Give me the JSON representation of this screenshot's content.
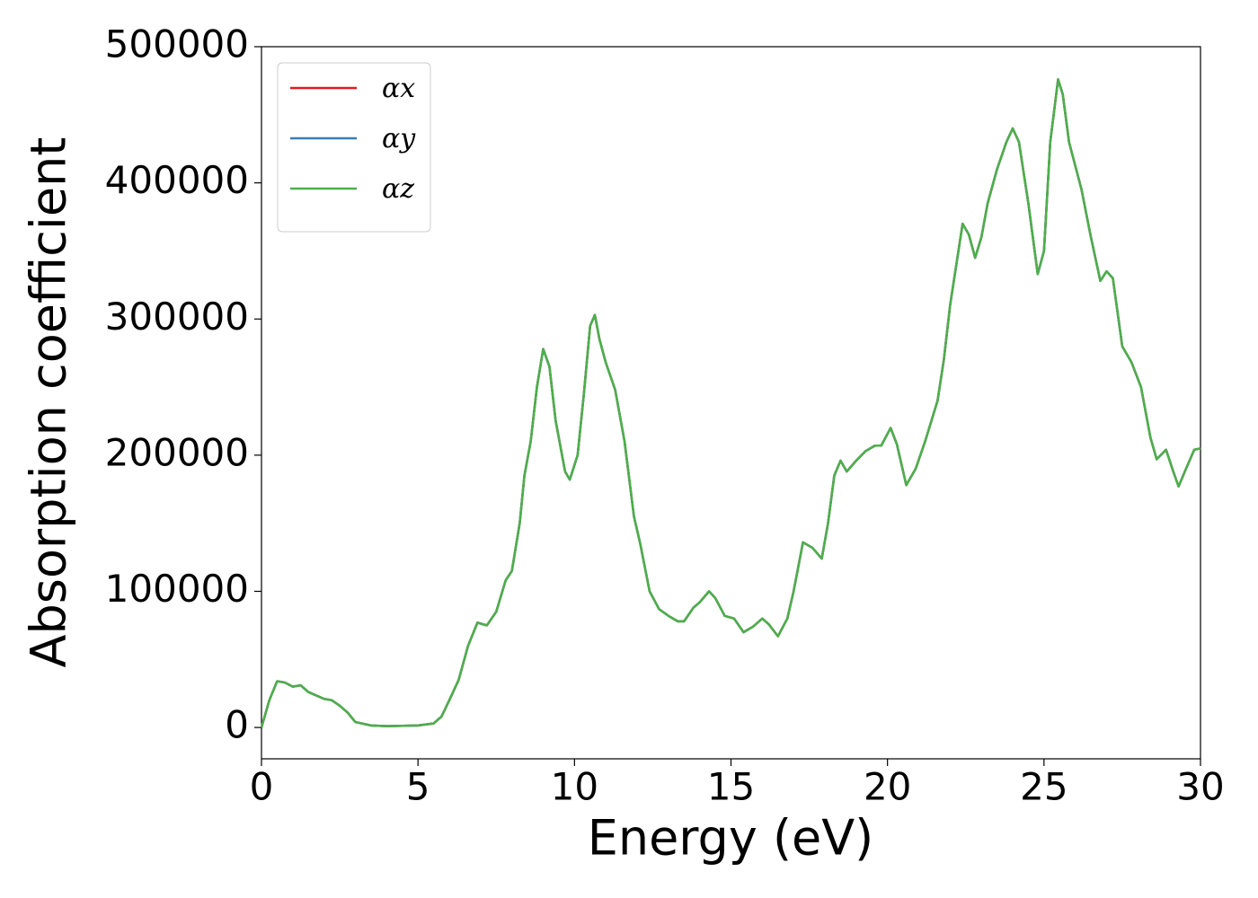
{
  "chart_data": {
    "type": "line",
    "x_label": "Energy (eV)",
    "y_label": "Absorption coefficient",
    "x": [
      0,
      0.25,
      0.5,
      0.75,
      1.0,
      1.25,
      1.5,
      2.0,
      2.25,
      2.5,
      2.75,
      3.0,
      3.5,
      4,
      5,
      5.5,
      5.75,
      6.0,
      6.3,
      6.6,
      6.9,
      7.2,
      7.5,
      7.8,
      8.0,
      8.25,
      8.4,
      8.6,
      8.8,
      9.0,
      9.2,
      9.4,
      9.7,
      9.85,
      10.1,
      10.3,
      10.5,
      10.65,
      10.8,
      11.0,
      11.3,
      11.6,
      11.9,
      12.1,
      12.4,
      12.7,
      13.0,
      13.3,
      13.5,
      13.8,
      14.0,
      14.3,
      14.5,
      14.8,
      15.1,
      15.4,
      15.7,
      16.0,
      16.2,
      16.5,
      16.8,
      17.0,
      17.3,
      17.6,
      17.9,
      18.1,
      18.3,
      18.5,
      18.7,
      19.0,
      19.3,
      19.6,
      19.8,
      20.1,
      20.3,
      20.6,
      20.9,
      21.2,
      21.6,
      21.8,
      22.0,
      22.2,
      22.4,
      22.6,
      22.8,
      23.0,
      23.2,
      23.5,
      23.8,
      24.0,
      24.2,
      24.5,
      24.8,
      25.0,
      25.2,
      25.45,
      25.6,
      25.8,
      26.2,
      26.5,
      26.8,
      27.0,
      27.2,
      27.5,
      27.8,
      28.1,
      28.4,
      28.6,
      28.9,
      29.1,
      29.3,
      29.5,
      29.8,
      30.0
    ],
    "series": [
      {
        "name": "αx",
        "color": "#e41a1c",
        "values": [
          0,
          20000,
          34000,
          33000,
          30000,
          31000,
          26000,
          21000,
          20000,
          16000,
          11000,
          4000,
          1500,
          1000,
          1500,
          3000,
          8000,
          20000,
          35000,
          60000,
          77000,
          75000,
          85000,
          108000,
          115000,
          150000,
          185000,
          210000,
          250000,
          278000,
          265000,
          225000,
          188000,
          182000,
          200000,
          245000,
          295000,
          303000,
          285000,
          268000,
          248000,
          210000,
          155000,
          135000,
          100000,
          87000,
          82000,
          78000,
          78000,
          88000,
          92000,
          100000,
          95000,
          82000,
          80000,
          70000,
          74000,
          80000,
          76000,
          67000,
          80000,
          100000,
          136000,
          132000,
          124000,
          150000,
          185000,
          196000,
          188000,
          196000,
          203000,
          207000,
          207000,
          220000,
          208000,
          178000,
          190000,
          210000,
          240000,
          270000,
          310000,
          340000,
          370000,
          362000,
          345000,
          360000,
          385000,
          410000,
          430000,
          440000,
          430000,
          385000,
          333000,
          350000,
          430000,
          476000,
          465000,
          430000,
          395000,
          360000,
          328000,
          335000,
          330000,
          280000,
          268000,
          250000,
          213000,
          197000,
          204000,
          190000,
          177000,
          188000,
          204000,
          205000
        ]
      },
      {
        "name": "αy",
        "color": "#377eb8",
        "values": [
          0,
          20000,
          34000,
          33000,
          30000,
          31000,
          26000,
          21000,
          20000,
          16000,
          11000,
          4000,
          1500,
          1000,
          1500,
          3000,
          8000,
          20000,
          35000,
          60000,
          77000,
          75000,
          85000,
          108000,
          115000,
          150000,
          185000,
          210000,
          250000,
          278000,
          265000,
          225000,
          188000,
          182000,
          200000,
          245000,
          295000,
          303000,
          285000,
          268000,
          248000,
          210000,
          155000,
          135000,
          100000,
          87000,
          82000,
          78000,
          78000,
          88000,
          92000,
          100000,
          95000,
          82000,
          80000,
          70000,
          74000,
          80000,
          76000,
          67000,
          80000,
          100000,
          136000,
          132000,
          124000,
          150000,
          185000,
          196000,
          188000,
          196000,
          203000,
          207000,
          207000,
          220000,
          208000,
          178000,
          190000,
          210000,
          240000,
          270000,
          310000,
          340000,
          370000,
          362000,
          345000,
          360000,
          385000,
          410000,
          430000,
          440000,
          430000,
          385000,
          333000,
          350000,
          430000,
          476000,
          465000,
          430000,
          395000,
          360000,
          328000,
          335000,
          330000,
          280000,
          268000,
          250000,
          213000,
          197000,
          204000,
          190000,
          177000,
          188000,
          204000,
          205000
        ]
      },
      {
        "name": "αz",
        "color": "#4daf4a",
        "values": [
          0,
          20000,
          34000,
          33000,
          30000,
          31000,
          26000,
          21000,
          20000,
          16000,
          11000,
          4000,
          1500,
          1000,
          1500,
          3000,
          8000,
          20000,
          35000,
          60000,
          77000,
          75000,
          85000,
          108000,
          115000,
          150000,
          185000,
          210000,
          250000,
          278000,
          265000,
          225000,
          188000,
          182000,
          200000,
          245000,
          295000,
          303000,
          285000,
          268000,
          248000,
          210000,
          155000,
          135000,
          100000,
          87000,
          82000,
          78000,
          78000,
          88000,
          92000,
          100000,
          95000,
          82000,
          80000,
          70000,
          74000,
          80000,
          76000,
          67000,
          80000,
          100000,
          136000,
          132000,
          124000,
          150000,
          185000,
          196000,
          188000,
          196000,
          203000,
          207000,
          207000,
          220000,
          208000,
          178000,
          190000,
          210000,
          240000,
          270000,
          310000,
          340000,
          370000,
          362000,
          345000,
          360000,
          385000,
          410000,
          430000,
          440000,
          430000,
          385000,
          333000,
          350000,
          430000,
          476000,
          465000,
          430000,
          395000,
          360000,
          328000,
          335000,
          330000,
          280000,
          268000,
          250000,
          213000,
          197000,
          204000,
          190000,
          177000,
          188000,
          204000,
          205000
        ]
      }
    ],
    "xlim": [
      0,
      30
    ],
    "xticks": [
      0,
      5,
      10,
      15,
      20,
      25,
      30
    ],
    "ylim": [
      -23000,
      500000
    ],
    "yticks": [
      0,
      100000,
      200000,
      300000,
      400000,
      500000
    ],
    "legend": "upper left",
    "grid": false
  }
}
